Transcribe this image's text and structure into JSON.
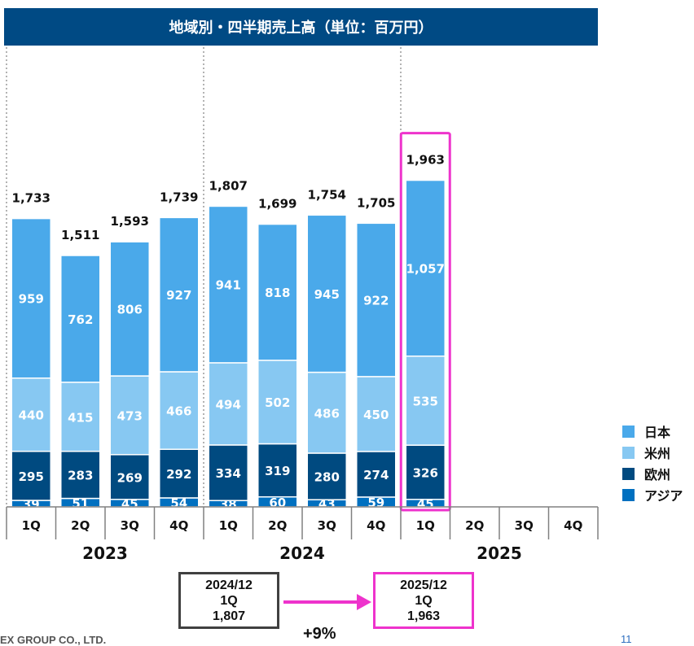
{
  "page": {
    "title": "地域別・四半期売上高（単位：百万円）",
    "footer_company": "EX GROUP CO., LTD.",
    "page_number": "11"
  },
  "comparison": {
    "previous": {
      "period": "2024/12",
      "quarter": "1Q",
      "value": "1,807"
    },
    "current": {
      "period": "2025/12",
      "quarter": "1Q",
      "value": "1,963"
    },
    "growth": "+9%"
  },
  "colors": {
    "header_bg": "#004a84",
    "japan": "#4aa9ea",
    "americas": "#87c8f2",
    "europe": "#004a80",
    "asia": "#0070c0",
    "highlight": "#ee33cc"
  },
  "chart_data": {
    "type": "bar",
    "stacked": true,
    "title": "地域別・四半期売上高（単位：百万円）",
    "years": [
      {
        "label": "2023",
        "quarters": [
          "1Q",
          "2Q",
          "3Q",
          "4Q"
        ]
      },
      {
        "label": "2024",
        "quarters": [
          "1Q",
          "2Q",
          "3Q",
          "4Q"
        ]
      },
      {
        "label": "2025",
        "quarters": [
          "1Q",
          "2Q",
          "3Q",
          "4Q"
        ]
      }
    ],
    "categories": [
      "1Q",
      "2Q",
      "3Q",
      "4Q",
      "1Q",
      "2Q",
      "3Q",
      "4Q",
      "1Q",
      "2Q",
      "3Q",
      "4Q"
    ],
    "series": [
      {
        "name": "アジア",
        "color": "#0070c0",
        "values": [
          39,
          51,
          45,
          54,
          38,
          60,
          43,
          59,
          45,
          null,
          null,
          null
        ]
      },
      {
        "name": "欧州",
        "color": "#004a80",
        "values": [
          295,
          283,
          269,
          292,
          334,
          319,
          280,
          274,
          326,
          null,
          null,
          null
        ]
      },
      {
        "name": "米州",
        "color": "#87c8f2",
        "values": [
          440,
          415,
          473,
          466,
          494,
          502,
          486,
          450,
          535,
          null,
          null,
          null
        ]
      },
      {
        "name": "日本",
        "color": "#4aa9ea",
        "values": [
          959,
          762,
          806,
          927,
          941,
          818,
          945,
          922,
          1057,
          null,
          null,
          null
        ]
      }
    ],
    "value_labels": {
      "アジア": [
        "39",
        "51",
        "45",
        "54",
        "38",
        "60",
        "43",
        "59",
        "45"
      ],
      "欧州": [
        "295",
        "283",
        "269",
        "292",
        "334",
        "319",
        "280",
        "274",
        "326"
      ],
      "米州": [
        "440",
        "415",
        "473",
        "466",
        "494",
        "502",
        "486",
        "450",
        "535"
      ],
      "日本": [
        "959",
        "762",
        "806",
        "927",
        "941",
        "818",
        "945",
        "922",
        "1,057"
      ]
    },
    "totals": [
      1733,
      1511,
      1593,
      1739,
      1807,
      1699,
      1754,
      1705,
      1963,
      null,
      null,
      null
    ],
    "total_labels": [
      "1,733",
      "1,511",
      "1,593",
      "1,739",
      "1,807",
      "1,699",
      "1,754",
      "1,705",
      "1,963"
    ],
    "highlighted_index": 8,
    "legend": [
      "日本",
      "米州",
      "欧州",
      "アジア"
    ],
    "legend_position": "right",
    "ylim": [
      0,
      2000
    ]
  }
}
